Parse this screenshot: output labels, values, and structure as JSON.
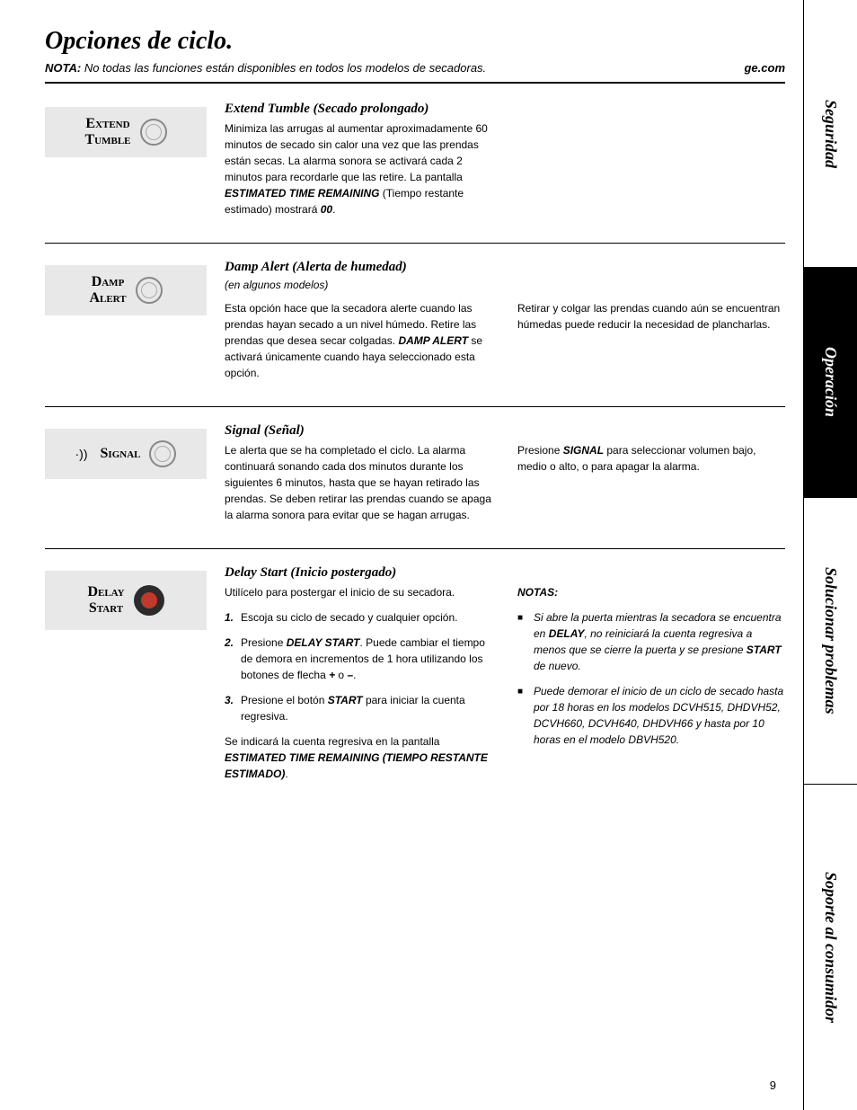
{
  "header": {
    "title": "Opciones de ciclo.",
    "note_label": "NOTA:",
    "note_text": "No todas las funciones están disponibles en todos los modelos de secadoras.",
    "site": "ge.com"
  },
  "tabs": {
    "seguridad": "Seguridad",
    "operacion": "Operación",
    "solucionar": "Solucionar problemas",
    "soporte": "Soporte al consumidor"
  },
  "extend_tumble": {
    "label_line1": "Extend",
    "label_line2": "Tumble",
    "title": "Extend Tumble (Secado prolongado)",
    "body_a": "Minimiza las arrugas al aumentar aproximadamente 60 minutos de secado sin calor una vez que las prendas están secas. La alarma sonora se activará cada 2 minutos para recordarle que las retire. La pantalla ",
    "body_bold": "ESTIMATED TIME REMAINING",
    "body_b": " (Tiempo restante estimado) mostrará ",
    "body_bold2": "00",
    "body_c": "."
  },
  "damp_alert": {
    "label_line1": "Damp",
    "label_line2": "Alert",
    "title": "Damp Alert (Alerta de humedad)",
    "subnote": "(en algunos modelos)",
    "col1_a": "Esta opción hace que la secadora alerte cuando las prendas hayan secado a un nivel húmedo. Retire las prendas que desea secar colgadas. ",
    "col1_bold": "DAMP ALERT",
    "col1_b": " se activará únicamente cuando haya seleccionado esta opción.",
    "col2": "Retirar y colgar las prendas cuando aún se encuentran húmedas puede reducir la necesidad de plancharlas."
  },
  "signal": {
    "label": "Signal",
    "title": "Signal (Señal)",
    "col1": "Le alerta que se ha completado el ciclo. La alarma continuará sonando cada dos minutos durante los siguientes 6 minutos, hasta que se hayan retirado las prendas. Se deben retirar las prendas cuando se apaga la alarma sonora para evitar que se hagan arrugas.",
    "col2_a": "Presione ",
    "col2_bold": "SIGNAL",
    "col2_b": " para seleccionar volumen bajo, medio o alto, o para apagar la alarma."
  },
  "delay_start": {
    "label_line1": "Delay",
    "label_line2": "Start",
    "title": "Delay Start (Inicio postergado)",
    "intro": "Utilícelo para postergar el inicio de su secadora.",
    "step1": "Escoja su ciclo de secado y cualquier opción.",
    "step2_a": "Presione ",
    "step2_bold": "DELAY START",
    "step2_b": ". Puede cambiar el tiempo de demora en incrementos de 1 hora utilizando los botones de flecha ",
    "step2_bold2": "+",
    "step2_c": " o ",
    "step2_bold3": "–",
    "step2_d": ".",
    "step3_a": "Presione el botón ",
    "step3_bold": "START",
    "step3_b": " para iniciar la cuenta regresiva.",
    "after_a": "Se indicará la cuenta regresiva en la pantalla ",
    "after_bold": "ESTIMATED TIME REMAINING (TIEMPO RESTANTE ESTIMADO)",
    "after_b": ".",
    "notes_label": "NOTAS:",
    "note1_a": "Si abre la puerta mientras la secadora se encuentra en ",
    "note1_bold": "DELAY",
    "note1_b": ", no reiniciará la cuenta regresiva a menos que se cierre la puerta y se presione ",
    "note1_bold2": "START",
    "note1_c": " de nuevo.",
    "note2": "Puede demorar el inicio de un ciclo de secado hasta por 18 horas en los modelos DCVH515, DHDVH52, DCVH660, DCVH640, DHDVH66 y hasta por 10 horas en el modelo DBVH520."
  },
  "page_number": "9"
}
